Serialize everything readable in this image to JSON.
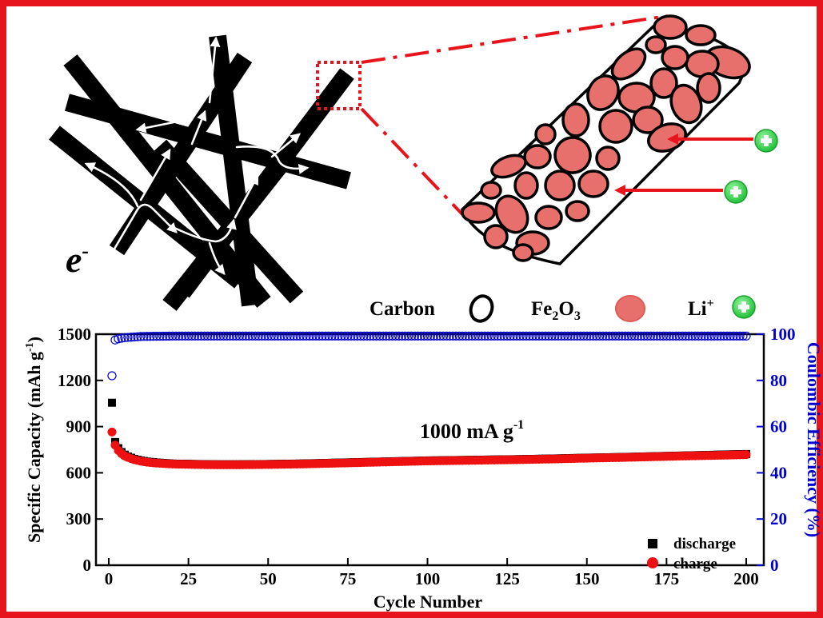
{
  "scheme": {
    "electron_label": "e",
    "electron_superscript": "-",
    "legend": [
      {
        "label": "Carbon",
        "icon": "carbon-ring-icon"
      },
      {
        "label_main": "Fe",
        "sub1": "2",
        "mid": "O",
        "sub2": "3",
        "icon": "fe2o3-particle-icon"
      },
      {
        "label_main": "Li",
        "sup": "+",
        "icon": "li-ion-plus-icon"
      }
    ],
    "colors": {
      "frame": "#e8141b",
      "fiber": "#000000",
      "particle": "#e8706c",
      "li": "#35d94a",
      "efficiency": "#0000cc",
      "charge": "#ee1111"
    }
  },
  "chart_data": {
    "type": "scatter",
    "annotation": {
      "text": "1000 mA g",
      "sup": "-1"
    },
    "x_axis": {
      "label": "Cycle Number",
      "range": [
        0,
        200
      ],
      "ticks": [
        0,
        25,
        50,
        75,
        100,
        125,
        150,
        175,
        200
      ]
    },
    "y_axis_left": {
      "label": "Specific Capacity (mAh g",
      "label_sup": "-1",
      "label_end": ")",
      "range": [
        0,
        1500
      ],
      "ticks": [
        0,
        300,
        600,
        900,
        1200,
        1500
      ]
    },
    "y_axis_right": {
      "label": "Coulombic Efficiency (%)",
      "range": [
        0,
        100
      ],
      "ticks": [
        0,
        20,
        40,
        60,
        80,
        100
      ]
    },
    "legend_placement": "bottom-right",
    "series": [
      {
        "name": "discharge",
        "axis": "left",
        "marker": "square",
        "color": "#000000",
        "points": [
          [
            1,
            1055
          ],
          [
            2,
            800
          ],
          [
            3,
            760
          ],
          [
            4,
            735
          ],
          [
            5,
            718
          ],
          [
            6,
            706
          ],
          [
            8,
            690
          ],
          [
            10,
            680
          ],
          [
            12,
            673
          ],
          [
            15,
            667
          ],
          [
            20,
            660
          ],
          [
            25,
            658
          ],
          [
            30,
            656
          ],
          [
            35,
            655
          ],
          [
            40,
            655
          ],
          [
            50,
            657
          ],
          [
            60,
            660
          ],
          [
            70,
            665
          ],
          [
            80,
            670
          ],
          [
            90,
            675
          ],
          [
            100,
            680
          ],
          [
            110,
            683
          ],
          [
            120,
            686
          ],
          [
            130,
            689
          ],
          [
            140,
            693
          ],
          [
            150,
            698
          ],
          [
            160,
            702
          ],
          [
            170,
            707
          ],
          [
            180,
            712
          ],
          [
            190,
            717
          ],
          [
            200,
            722
          ]
        ]
      },
      {
        "name": "charge",
        "axis": "left",
        "marker": "circle",
        "color": "#ee1111",
        "points": [
          [
            1,
            865
          ],
          [
            2,
            780
          ],
          [
            3,
            745
          ],
          [
            4,
            725
          ],
          [
            5,
            710
          ],
          [
            6,
            700
          ],
          [
            8,
            685
          ],
          [
            10,
            676
          ],
          [
            12,
            669
          ],
          [
            15,
            663
          ],
          [
            20,
            657
          ],
          [
            25,
            655
          ],
          [
            30,
            653
          ],
          [
            35,
            652
          ],
          [
            40,
            652
          ],
          [
            50,
            654
          ],
          [
            60,
            657
          ],
          [
            70,
            662
          ],
          [
            80,
            667
          ],
          [
            90,
            672
          ],
          [
            100,
            677
          ],
          [
            110,
            680
          ],
          [
            120,
            683
          ],
          [
            130,
            686
          ],
          [
            140,
            690
          ],
          [
            150,
            695
          ],
          [
            160,
            699
          ],
          [
            170,
            704
          ],
          [
            180,
            709
          ],
          [
            190,
            713
          ],
          [
            200,
            718
          ]
        ]
      },
      {
        "name": "coulombic efficiency",
        "axis": "right",
        "marker": "open-circle",
        "color": "#0000cc",
        "points": [
          [
            1,
            82
          ],
          [
            2,
            97.5
          ],
          [
            3,
            98
          ],
          [
            5,
            98.5
          ],
          [
            10,
            99
          ],
          [
            20,
            99.2
          ],
          [
            50,
            99.2
          ],
          [
            100,
            99.2
          ],
          [
            150,
            99.2
          ],
          [
            200,
            99.2
          ]
        ]
      }
    ],
    "legend": [
      {
        "label": "discharge",
        "marker": "square"
      },
      {
        "label": "charge",
        "marker": "circle"
      }
    ]
  }
}
